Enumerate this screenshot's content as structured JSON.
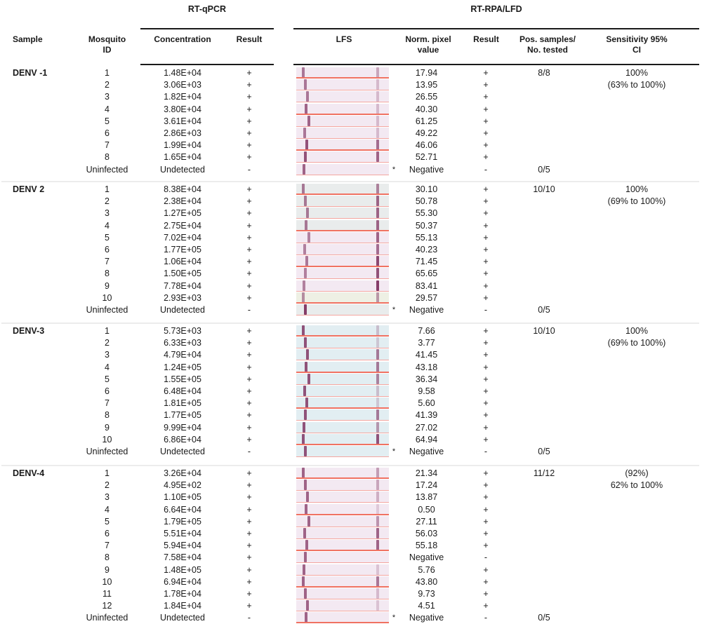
{
  "header": {
    "group_qpcr": "RT-qPCR",
    "group_rpa": "RT-RPA/LFD",
    "col_sample": "Sample",
    "col_mosquito_id": "Mosquito ID",
    "col_concentration": "Concentration",
    "col_result_qpcr": "Result",
    "col_lfs": "LFS",
    "col_norm_pixel": "Norm. pixel value",
    "col_result_rpa": "Result",
    "col_pos_samples": "Pos. samples/ No. tested",
    "col_sensitivity": "Sensitivity 95% CI"
  },
  "colors": {
    "strip_pink": "#f3e9f2",
    "strip_gray": "#e9ecec",
    "strip_blue": "#e2eef2",
    "strip_cream": "#eef0e4",
    "band": "#7a2a5a",
    "edge_red": "#f07262"
  },
  "sections": [
    {
      "sample": "DENV -1",
      "pos_tested": "8/8",
      "sensitivity": "100%",
      "ci": "(63% to 100%)",
      "uninfected_pos_tested": "0/5",
      "rows": [
        {
          "id": "1",
          "conc": "1.48E+04",
          "qpcr": "+",
          "norm": "17.94",
          "rpa": "+",
          "tint": "pink",
          "test": 0.6,
          "ctrl": 0.2,
          "star": ""
        },
        {
          "id": "2",
          "conc": "3.06E+03",
          "qpcr": "+",
          "norm": "13.95",
          "rpa": "+",
          "tint": "pink",
          "test": 0.6,
          "ctrl": 0.1,
          "star": ""
        },
        {
          "id": "3",
          "conc": "1.82E+04",
          "qpcr": "+",
          "norm": "26.55",
          "rpa": "+",
          "tint": "pink",
          "test": 0.6,
          "ctrl": 0.1,
          "star": ""
        },
        {
          "id": "4",
          "conc": "3.80E+04",
          "qpcr": "+",
          "norm": "40.30",
          "rpa": "+",
          "tint": "pink",
          "test": 0.7,
          "ctrl": 0.1,
          "star": ""
        },
        {
          "id": "5",
          "conc": "3.61E+04",
          "qpcr": "+",
          "norm": "61.25",
          "rpa": "+",
          "tint": "pink",
          "test": 0.7,
          "ctrl": 0.1,
          "star": ""
        },
        {
          "id": "6",
          "conc": "2.86E+03",
          "qpcr": "+",
          "norm": "49.22",
          "rpa": "+",
          "tint": "pink",
          "test": 0.6,
          "ctrl": 0.1,
          "star": ""
        },
        {
          "id": "7",
          "conc": "1.99E+04",
          "qpcr": "+",
          "norm": "46.06",
          "rpa": "+",
          "tint": "pink",
          "test": 0.8,
          "ctrl": 0.5,
          "star": ""
        },
        {
          "id": "8",
          "conc": "1.65E+04",
          "qpcr": "+",
          "norm": "52.71",
          "rpa": "+",
          "tint": "pink",
          "test": 0.8,
          "ctrl": 0.55,
          "star": ""
        },
        {
          "id": "Uninfected",
          "conc": "Undetected",
          "qpcr": "-",
          "norm": "Negative",
          "rpa": "-",
          "tint": "pink",
          "test": 0.7,
          "ctrl": 0.0,
          "star": "*"
        }
      ]
    },
    {
      "sample": "DENV 2",
      "pos_tested": "10/10",
      "sensitivity": "100%",
      "ci": "(69% to 100%)",
      "uninfected_pos_tested": "0/5",
      "rows": [
        {
          "id": "1",
          "conc": "8.38E+04",
          "qpcr": "+",
          "norm": "30.10",
          "rpa": "+",
          "tint": "gray",
          "test": 0.6,
          "ctrl": 0.4,
          "star": ""
        },
        {
          "id": "2",
          "conc": "2.38E+04",
          "qpcr": "+",
          "norm": "50.78",
          "rpa": "+",
          "tint": "gray",
          "test": 0.6,
          "ctrl": 0.55,
          "star": ""
        },
        {
          "id": "3",
          "conc": "1.27E+05",
          "qpcr": "+",
          "norm": "55.30",
          "rpa": "+",
          "tint": "gray",
          "test": 0.6,
          "ctrl": 0.55,
          "star": ""
        },
        {
          "id": "4",
          "conc": "2.75E+04",
          "qpcr": "+",
          "norm": "50.37",
          "rpa": "+",
          "tint": "gray",
          "test": 0.6,
          "ctrl": 0.55,
          "star": ""
        },
        {
          "id": "5",
          "conc": "7.02E+04",
          "qpcr": "+",
          "norm": "55.13",
          "rpa": "+",
          "tint": "pink",
          "test": 0.55,
          "ctrl": 0.55,
          "star": ""
        },
        {
          "id": "6",
          "conc": "1.77E+05",
          "qpcr": "+",
          "norm": "40.23",
          "rpa": "+",
          "tint": "pink",
          "test": 0.55,
          "ctrl": 0.5,
          "star": ""
        },
        {
          "id": "7",
          "conc": "1.06E+04",
          "qpcr": "+",
          "norm": "71.45",
          "rpa": "+",
          "tint": "pink",
          "test": 0.6,
          "ctrl": 0.7,
          "star": ""
        },
        {
          "id": "8",
          "conc": "1.50E+05",
          "qpcr": "+",
          "norm": "65.65",
          "rpa": "+",
          "tint": "pink",
          "test": 0.55,
          "ctrl": 0.65,
          "star": ""
        },
        {
          "id": "9",
          "conc": "7.78E+04",
          "qpcr": "+",
          "norm": "83.41",
          "rpa": "+",
          "tint": "pink",
          "test": 0.55,
          "ctrl": 0.8,
          "star": ""
        },
        {
          "id": "10",
          "conc": "2.93E+03",
          "qpcr": "+",
          "norm": "29.57",
          "rpa": "+",
          "tint": "cream",
          "test": 0.5,
          "ctrl": 0.3,
          "star": ""
        },
        {
          "id": "Uninfected",
          "conc": "Undetected",
          "qpcr": "-",
          "norm": "Negative",
          "rpa": "-",
          "tint": "gray",
          "test": 0.9,
          "ctrl": 0.0,
          "star": "*"
        }
      ]
    },
    {
      "sample": "DENV-3",
      "pos_tested": "10/10",
      "sensitivity": "100%",
      "ci": "(69% to 100%)",
      "uninfected_pos_tested": "0/5",
      "rows": [
        {
          "id": "1",
          "conc": "5.73E+03",
          "qpcr": "+",
          "norm": "7.66",
          "rpa": "+",
          "tint": "blue",
          "test": 0.8,
          "ctrl": 0.1,
          "star": ""
        },
        {
          "id": "2",
          "conc": "6.33E+03",
          "qpcr": "+",
          "norm": "3.77",
          "rpa": "+",
          "tint": "blue",
          "test": 0.8,
          "ctrl": 0.05,
          "star": ""
        },
        {
          "id": "3",
          "conc": "4.79E+04",
          "qpcr": "+",
          "norm": "41.45",
          "rpa": "+",
          "tint": "blue",
          "test": 0.8,
          "ctrl": 0.45,
          "star": ""
        },
        {
          "id": "4",
          "conc": "1.24E+05",
          "qpcr": "+",
          "norm": "43.18",
          "rpa": "+",
          "tint": "blue",
          "test": 0.8,
          "ctrl": 0.45,
          "star": ""
        },
        {
          "id": "5",
          "conc": "1.55E+05",
          "qpcr": "+",
          "norm": "36.34",
          "rpa": "+",
          "tint": "blue",
          "test": 0.8,
          "ctrl": 0.4,
          "star": ""
        },
        {
          "id": "6",
          "conc": "6.48E+04",
          "qpcr": "+",
          "norm": "9.58",
          "rpa": "+",
          "tint": "blue",
          "test": 0.8,
          "ctrl": 0.1,
          "star": ""
        },
        {
          "id": "7",
          "conc": "1.81E+05",
          "qpcr": "+",
          "norm": "5.60",
          "rpa": "+",
          "tint": "blue",
          "test": 0.8,
          "ctrl": 0.05,
          "star": ""
        },
        {
          "id": "8",
          "conc": "1.77E+05",
          "qpcr": "+",
          "norm": "41.39",
          "rpa": "+",
          "tint": "blue",
          "test": 0.8,
          "ctrl": 0.45,
          "star": ""
        },
        {
          "id": "9",
          "conc": "9.99E+04",
          "qpcr": "+",
          "norm": "27.02",
          "rpa": "+",
          "tint": "blue",
          "test": 0.8,
          "ctrl": 0.3,
          "star": ""
        },
        {
          "id": "10",
          "conc": "6.86E+04",
          "qpcr": "+",
          "norm": "64.94",
          "rpa": "+",
          "tint": "blue",
          "test": 0.8,
          "ctrl": 0.65,
          "star": ""
        },
        {
          "id": "Uninfected",
          "conc": "Undetected",
          "qpcr": "-",
          "norm": "Negative",
          "rpa": "-",
          "tint": "blue",
          "test": 0.8,
          "ctrl": 0.0,
          "star": "*"
        }
      ]
    },
    {
      "sample": "DENV-4",
      "pos_tested": "11/12",
      "sensitivity": "(92%)",
      "ci": "62% to 100%",
      "uninfected_pos_tested": "0/5",
      "rows": [
        {
          "id": "1",
          "conc": "3.26E+04",
          "qpcr": "+",
          "norm": "21.34",
          "rpa": "+",
          "tint": "pink",
          "test": 0.7,
          "ctrl": 0.25,
          "star": ""
        },
        {
          "id": "2",
          "conc": "4.95E+02",
          "qpcr": "+",
          "norm": "17.24",
          "rpa": "+",
          "tint": "pink",
          "test": 0.7,
          "ctrl": 0.2,
          "star": ""
        },
        {
          "id": "3",
          "conc": "1.10E+05",
          "qpcr": "+",
          "norm": "13.87",
          "rpa": "+",
          "tint": "pink",
          "test": 0.7,
          "ctrl": 0.15,
          "star": ""
        },
        {
          "id": "4",
          "conc": "6.64E+04",
          "qpcr": "+",
          "norm": "0.50",
          "rpa": "+",
          "tint": "pink",
          "test": 0.7,
          "ctrl": 0.02,
          "star": ""
        },
        {
          "id": "5",
          "conc": "1.79E+05",
          "qpcr": "+",
          "norm": "27.11",
          "rpa": "+",
          "tint": "pink",
          "test": 0.7,
          "ctrl": 0.3,
          "star": ""
        },
        {
          "id": "6",
          "conc": "5.51E+04",
          "qpcr": "+",
          "norm": "56.03",
          "rpa": "+",
          "tint": "pink",
          "test": 0.7,
          "ctrl": 0.55,
          "star": ""
        },
        {
          "id": "7",
          "conc": "5.94E+04",
          "qpcr": "+",
          "norm": "55.18",
          "rpa": "+",
          "tint": "pink",
          "test": 0.7,
          "ctrl": 0.55,
          "star": ""
        },
        {
          "id": "8",
          "conc": "7.58E+04",
          "qpcr": "+",
          "norm": "Negative",
          "rpa": "-",
          "tint": "pink",
          "test": 0.7,
          "ctrl": 0.0,
          "star": ""
        },
        {
          "id": "9",
          "conc": "1.48E+05",
          "qpcr": "+",
          "norm": "5.76",
          "rpa": "+",
          "tint": "pink",
          "test": 0.7,
          "ctrl": 0.05,
          "star": ""
        },
        {
          "id": "10",
          "conc": "6.94E+04",
          "qpcr": "+",
          "norm": "43.80",
          "rpa": "+",
          "tint": "pink",
          "test": 0.7,
          "ctrl": 0.45,
          "star": ""
        },
        {
          "id": "11",
          "conc": "1.78E+04",
          "qpcr": "+",
          "norm": "9.73",
          "rpa": "+",
          "tint": "pink",
          "test": 0.7,
          "ctrl": 0.1,
          "star": ""
        },
        {
          "id": "12",
          "conc": "1.84E+04",
          "qpcr": "+",
          "norm": "4.51",
          "rpa": "+",
          "tint": "pink",
          "test": 0.7,
          "ctrl": 0.05,
          "star": ""
        },
        {
          "id": "Uninfected",
          "conc": "Undetected",
          "qpcr": "-",
          "norm": "Negative",
          "rpa": "-",
          "tint": "pink",
          "test": 0.7,
          "ctrl": 0.0,
          "star": "*"
        }
      ]
    }
  ]
}
